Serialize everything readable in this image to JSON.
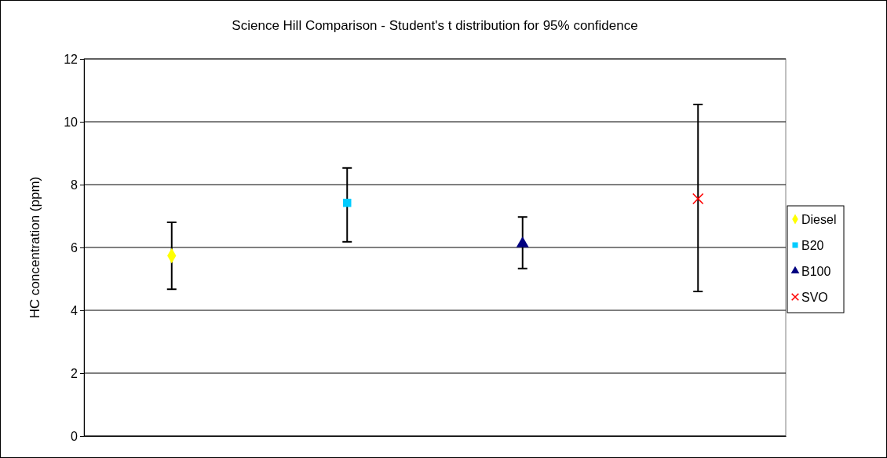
{
  "chart_data": {
    "type": "scatter",
    "title": "Science Hill Comparison - Student's t distribution for 95% confidence",
    "ylabel": "HC concentration (ppm)",
    "categories": [
      null,
      null,
      null,
      null
    ],
    "series": [
      {
        "name": "Diesel",
        "color": "#ffff00",
        "marker": "diamond",
        "values": [
          5.74,
          null,
          null,
          null
        ],
        "errors": [
          [
            4.67,
            6.8
          ],
          null,
          null,
          null
        ]
      },
      {
        "name": "B20",
        "color": "#00ccff",
        "marker": "square",
        "values": [
          null,
          7.42,
          null,
          null
        ],
        "errors": [
          null,
          [
            6.18,
            8.53
          ],
          null,
          null
        ]
      },
      {
        "name": "B100",
        "color": "#000080",
        "marker": "triangle",
        "values": [
          null,
          null,
          6.12,
          null
        ],
        "errors": [
          null,
          null,
          [
            5.33,
            6.97
          ],
          null
        ]
      },
      {
        "name": "SVO",
        "color": "#ff0000",
        "marker": "cross",
        "values": [
          null,
          null,
          null,
          7.55
        ],
        "errors": [
          null,
          null,
          null,
          [
            4.6,
            10.55
          ]
        ]
      }
    ],
    "ylim": [
      0,
      12
    ],
    "yticks": [
      0,
      2,
      4,
      6,
      8,
      10,
      12
    ],
    "grid": "y",
    "legend": "right"
  }
}
